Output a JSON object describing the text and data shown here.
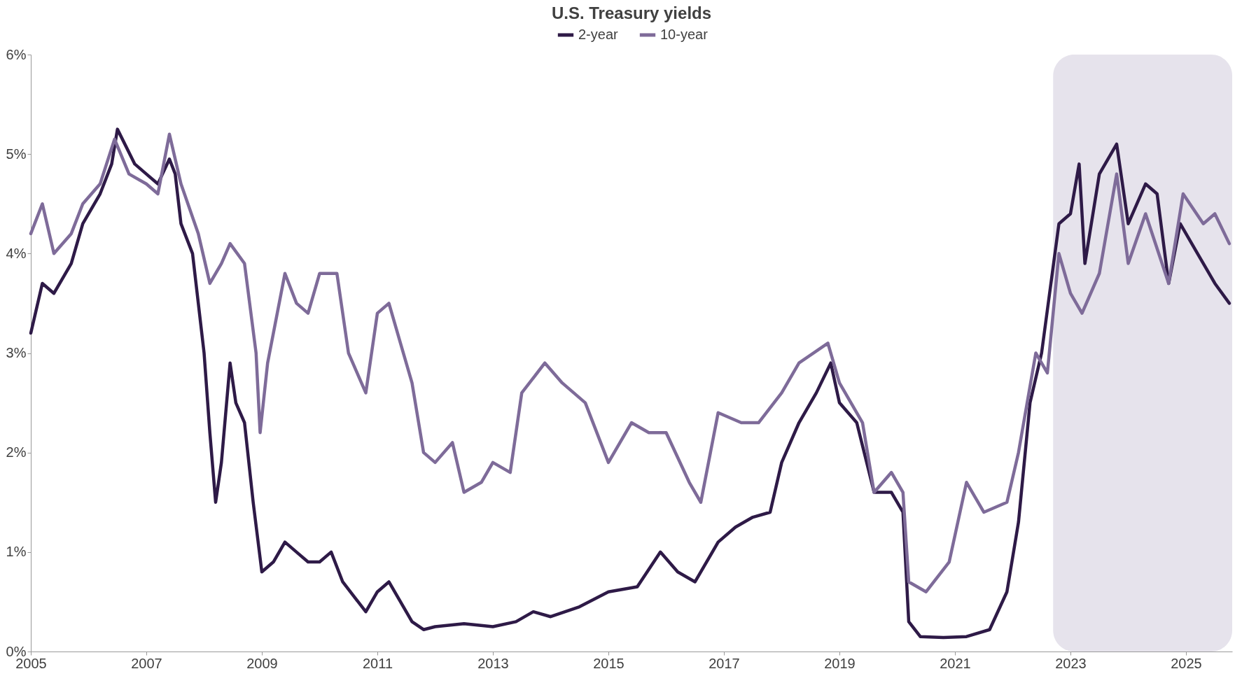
{
  "chart_data": {
    "type": "line",
    "title": "U.S. Treasury yields",
    "xlim": [
      2005,
      2025.8
    ],
    "xticks": [
      2005,
      2007,
      2009,
      2011,
      2013,
      2015,
      2017,
      2019,
      2021,
      2023,
      2025
    ],
    "ylim": [
      0,
      6
    ],
    "yticks": [
      {
        "value": 0,
        "label": "0%"
      },
      {
        "value": 1,
        "label": "1%"
      },
      {
        "value": 2,
        "label": "2%"
      },
      {
        "value": 3,
        "label": "3%"
      },
      {
        "value": 4,
        "label": "4%"
      },
      {
        "value": 5,
        "label": "5%"
      },
      {
        "value": 6,
        "label": "6%"
      }
    ],
    "grid": false,
    "legend": "top",
    "marker": "none",
    "line_style": "solid",
    "bands": [
      {
        "axis": "x",
        "from": 2022.7,
        "to": 2025.8,
        "color": "#e6e3ec"
      }
    ],
    "series": [
      {
        "name": "2-year",
        "color": "#2e1a47",
        "x": [
          2005.0,
          2005.2,
          2005.4,
          2005.7,
          2005.9,
          2006.2,
          2006.4,
          2006.5,
          2006.8,
          2007.0,
          2007.2,
          2007.4,
          2007.5,
          2007.6,
          2007.8,
          2008.0,
          2008.1,
          2008.2,
          2008.3,
          2008.45,
          2008.55,
          2008.7,
          2008.85,
          2009.0,
          2009.2,
          2009.4,
          2009.6,
          2009.8,
          2010.0,
          2010.2,
          2010.4,
          2010.6,
          2010.8,
          2011.0,
          2011.2,
          2011.4,
          2011.6,
          2011.8,
          2012.0,
          2012.5,
          2013.0,
          2013.4,
          2013.7,
          2014.0,
          2014.5,
          2015.0,
          2015.5,
          2015.9,
          2016.2,
          2016.5,
          2016.9,
          2017.2,
          2017.5,
          2017.8,
          2018.0,
          2018.3,
          2018.6,
          2018.85,
          2019.0,
          2019.3,
          2019.6,
          2019.9,
          2020.1,
          2020.2,
          2020.4,
          2020.8,
          2021.2,
          2021.6,
          2021.9,
          2022.1,
          2022.3,
          2022.5,
          2022.8,
          2023.0,
          2023.15,
          2023.25,
          2023.5,
          2023.8,
          2024.0,
          2024.3,
          2024.5,
          2024.7,
          2024.9,
          2025.2,
          2025.5,
          2025.75
        ],
        "values": [
          3.2,
          3.7,
          3.6,
          3.9,
          4.3,
          4.6,
          4.9,
          5.25,
          4.9,
          4.8,
          4.7,
          4.95,
          4.8,
          4.3,
          4.0,
          3.0,
          2.2,
          1.5,
          1.9,
          2.9,
          2.5,
          2.3,
          1.5,
          0.8,
          0.9,
          1.1,
          1.0,
          0.9,
          0.9,
          1.0,
          0.7,
          0.55,
          0.4,
          0.6,
          0.7,
          0.5,
          0.3,
          0.22,
          0.25,
          0.28,
          0.25,
          0.3,
          0.4,
          0.35,
          0.45,
          0.6,
          0.65,
          1.0,
          0.8,
          0.7,
          1.1,
          1.25,
          1.35,
          1.4,
          1.9,
          2.3,
          2.6,
          2.9,
          2.5,
          2.3,
          1.6,
          1.6,
          1.4,
          0.3,
          0.15,
          0.14,
          0.15,
          0.22,
          0.6,
          1.3,
          2.5,
          3.0,
          4.3,
          4.4,
          4.9,
          3.9,
          4.8,
          5.1,
          4.3,
          4.7,
          4.6,
          3.7,
          4.3,
          4.0,
          3.7,
          3.5
        ]
      },
      {
        "name": "10-year",
        "color": "#7e6b99",
        "x": [
          2005.0,
          2005.2,
          2005.4,
          2005.7,
          2005.9,
          2006.2,
          2006.45,
          2006.7,
          2007.0,
          2007.2,
          2007.4,
          2007.6,
          2007.9,
          2008.1,
          2008.3,
          2008.45,
          2008.7,
          2008.9,
          2008.97,
          2009.1,
          2009.4,
          2009.6,
          2009.8,
          2010.0,
          2010.3,
          2010.5,
          2010.8,
          2011.0,
          2011.2,
          2011.4,
          2011.6,
          2011.8,
          2012.0,
          2012.3,
          2012.5,
          2012.8,
          2013.0,
          2013.3,
          2013.5,
          2013.9,
          2014.2,
          2014.6,
          2015.0,
          2015.4,
          2015.7,
          2016.0,
          2016.4,
          2016.6,
          2016.9,
          2017.3,
          2017.6,
          2018.0,
          2018.3,
          2018.8,
          2019.0,
          2019.4,
          2019.6,
          2019.9,
          2020.1,
          2020.2,
          2020.5,
          2020.9,
          2021.2,
          2021.5,
          2021.9,
          2022.1,
          2022.4,
          2022.6,
          2022.8,
          2023.0,
          2023.2,
          2023.5,
          2023.8,
          2024.0,
          2024.3,
          2024.7,
          2024.95,
          2025.3,
          2025.5,
          2025.75
        ],
        "values": [
          4.2,
          4.5,
          4.0,
          4.2,
          4.5,
          4.7,
          5.15,
          4.8,
          4.7,
          4.6,
          5.2,
          4.7,
          4.2,
          3.7,
          3.9,
          4.1,
          3.9,
          3.0,
          2.2,
          2.9,
          3.8,
          3.5,
          3.4,
          3.8,
          3.8,
          3.0,
          2.6,
          3.4,
          3.5,
          3.1,
          2.7,
          2.0,
          1.9,
          2.1,
          1.6,
          1.7,
          1.9,
          1.8,
          2.6,
          2.9,
          2.7,
          2.5,
          1.9,
          2.3,
          2.2,
          2.2,
          1.7,
          1.5,
          2.4,
          2.3,
          2.3,
          2.6,
          2.9,
          3.1,
          2.7,
          2.3,
          1.6,
          1.8,
          1.6,
          0.7,
          0.6,
          0.9,
          1.7,
          1.4,
          1.5,
          2.0,
          3.0,
          2.8,
          4.0,
          3.6,
          3.4,
          3.8,
          4.8,
          3.9,
          4.4,
          3.7,
          4.6,
          4.3,
          4.4,
          4.1
        ]
      }
    ]
  }
}
